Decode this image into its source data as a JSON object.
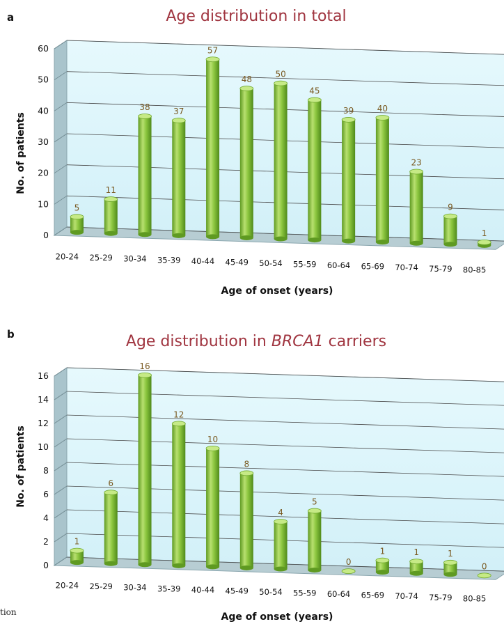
{
  "caption_fragment": "tion",
  "chart_data": [
    {
      "type": "bar",
      "panel": "a",
      "title_parts": [
        "Age distribution in total"
      ],
      "xlabel": "Age of onset (years)",
      "ylabel": "No. of patients",
      "ylim": [
        0,
        60
      ],
      "yticks": [
        "0",
        "10",
        "20",
        "30",
        "40",
        "50",
        "60"
      ],
      "grid": true,
      "categories": [
        "20-24",
        "25-29",
        "30-34",
        "35-39",
        "40-44",
        "45-49",
        "50-54",
        "55-59",
        "60-64",
        "65-69",
        "70-74",
        "75-79",
        "80-85"
      ],
      "values": [
        5,
        11,
        38,
        37,
        57,
        48,
        50,
        45,
        39,
        40,
        23,
        9,
        1
      ],
      "labels": [
        "5",
        "11",
        "38",
        "37",
        "57",
        "48",
        "50",
        "45",
        "39",
        "40",
        "23",
        "9",
        "1"
      ],
      "bar_color": "#8cc63f",
      "title_color": "#a03540"
    },
    {
      "type": "bar",
      "panel": "b",
      "title_parts": [
        "Age distribution in ",
        "BRCA1",
        " carriers"
      ],
      "xlabel": "Age of onset (years)",
      "ylabel": "No. of patients",
      "ylim": [
        0,
        16
      ],
      "yticks": [
        "0",
        "2",
        "4",
        "6",
        "8",
        "10",
        "12",
        "14",
        "16"
      ],
      "grid": true,
      "categories": [
        "20-24",
        "25-29",
        "30-34",
        "35-39",
        "40-44",
        "45-49",
        "50-54",
        "55-59",
        "60-64",
        "65-69",
        "70-74",
        "75-79",
        "80-85"
      ],
      "values": [
        1,
        6,
        16,
        12,
        10,
        8,
        4,
        5,
        0,
        1,
        1,
        1,
        0
      ],
      "labels": [
        "1",
        "6",
        "16",
        "12",
        "10",
        "8",
        "4",
        "5",
        "0",
        "1",
        "1",
        "1",
        "0"
      ],
      "bar_color": "#8cc63f",
      "title_color": "#a03540"
    }
  ]
}
